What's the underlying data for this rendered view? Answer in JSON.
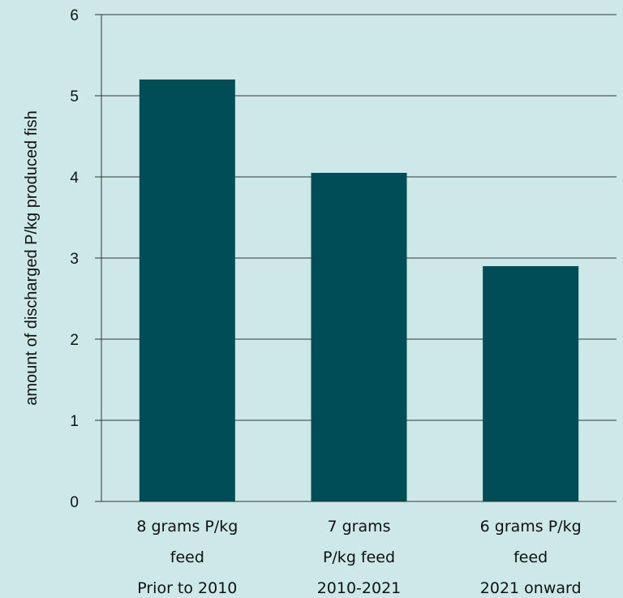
{
  "chart_data": {
    "type": "bar",
    "categories": [
      [
        "8 grams P/kg",
        "feed",
        "Prior to 2010"
      ],
      [
        "7 grams",
        "P/kg feed",
        "2010-2021"
      ],
      [
        "6 grams P/kg",
        "feed",
        "2021 onward"
      ]
    ],
    "values": [
      5.2,
      4.05,
      2.9
    ],
    "ylabel": "amount of discharged P/kg produced fish",
    "xlabel": "",
    "ylim": [
      0,
      6
    ],
    "yticks": [
      0,
      1,
      2,
      3,
      4,
      5,
      6
    ],
    "grid": true,
    "legend": "none",
    "colors": {
      "bar": "#004d57",
      "background": "#cce8e8",
      "grid": "#333333"
    }
  }
}
